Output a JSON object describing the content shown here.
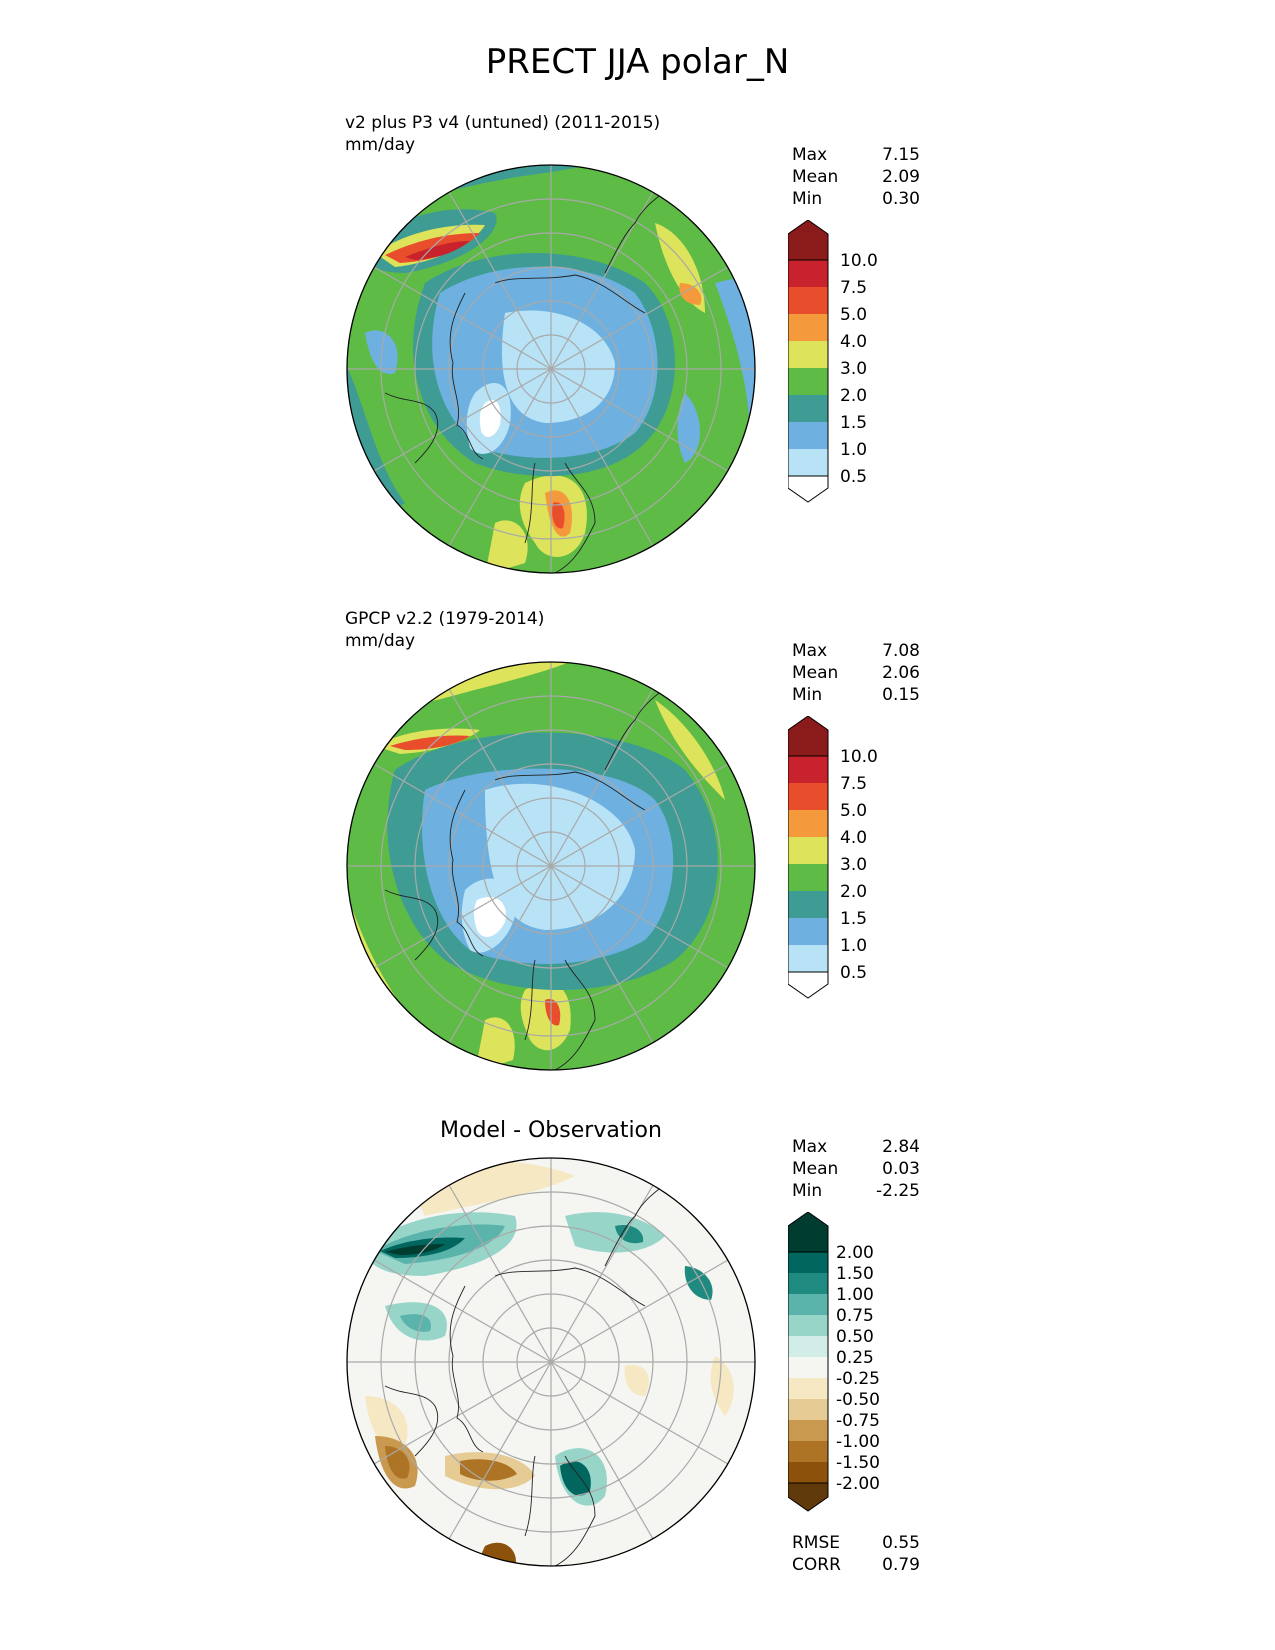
{
  "title": "PRECT JJA polar_N",
  "panels": [
    {
      "id": "test",
      "title_line1": "v2 plus P3 v4 (untuned) (2011-2015)",
      "title_line2": "mm/day",
      "stats": {
        "Max": "7.15",
        "Mean": "2.09",
        "Min": "0.30"
      },
      "colorbar_labels": [
        "10.0",
        "7.5",
        "5.0",
        "4.0",
        "3.0",
        "2.0",
        "1.5",
        "1.0",
        "0.5"
      ],
      "colorbar_colors": [
        "#8b1a1a",
        "#c8232c",
        "#e94e2c",
        "#f59a3c",
        "#dde35a",
        "#5dbb46",
        "#3f9c94",
        "#6eb1e0",
        "#b8e2f5",
        "#ffffff"
      ]
    },
    {
      "id": "reference",
      "title_line1": "GPCP v2.2 (1979-2014)",
      "title_line2": "mm/day",
      "stats": {
        "Max": "7.08",
        "Mean": "2.06",
        "Min": "0.15"
      },
      "colorbar_labels": [
        "10.0",
        "7.5",
        "5.0",
        "4.0",
        "3.0",
        "2.0",
        "1.5",
        "1.0",
        "0.5"
      ],
      "colorbar_colors": [
        "#8b1a1a",
        "#c8232c",
        "#e94e2c",
        "#f59a3c",
        "#dde35a",
        "#5dbb46",
        "#3f9c94",
        "#6eb1e0",
        "#b8e2f5",
        "#ffffff"
      ]
    },
    {
      "id": "diff",
      "title": "Model - Observation",
      "stats": {
        "Max": "2.84",
        "Mean": "0.03",
        "Min": "-2.25"
      },
      "colorbar_labels": [
        "2.00",
        "1.50",
        "1.00",
        "0.75",
        "0.50",
        "0.25",
        "-0.25",
        "-0.50",
        "-0.75",
        "-1.00",
        "-1.50",
        "-2.00"
      ],
      "colorbar_colors": [
        "#003c30",
        "#01665e",
        "#1f8a80",
        "#5ab4ac",
        "#98d5c9",
        "#d2ece7",
        "#f5f5f2",
        "#f6e8c3",
        "#e6cc94",
        "#c9994f",
        "#ad7426",
        "#8c510a",
        "#603a0a"
      ],
      "metrics": {
        "RMSE": "0.55",
        "CORR": "0.79"
      }
    }
  ]
}
